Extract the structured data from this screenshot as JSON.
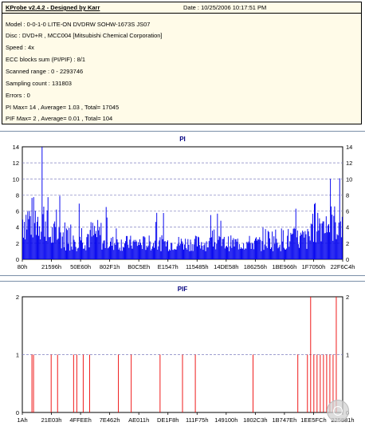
{
  "info": {
    "app_title": "KProbe v2.4.2 - Designed by Karr",
    "date": "Date : 10/25/2006 10:17:51 PM",
    "lines": [
      "Model : 0-0-1-0 LITE-ON DVDRW SOHW-1673S JS07",
      "Disc : DVD+R , MCC004 [Mitsubishi Chemical Corporation]",
      "Speed : 4x",
      "ECC blocks sum (PI/PIF) : 8/1",
      "Scanned range : 0 - 2293746",
      "Sampling count : 131803",
      "Errors : 0",
      "PI Max= 14 , Average= 1.03 , Total= 17045",
      "PIF Max= 2 , Average= 0.01 , Total= 104"
    ]
  },
  "colors": {
    "pi_bar": "#0000ee",
    "pif_bar": "#ee0000",
    "title": "#000080",
    "panel_border": "#7a8fa8"
  },
  "chart_data": [
    {
      "type": "bar",
      "title": "PI",
      "ylim": [
        0,
        14
      ],
      "yticks": [
        0,
        2,
        4,
        6,
        8,
        10,
        12,
        14
      ],
      "xticks": [
        "80h",
        "21596h",
        "50E60h",
        "802F1h",
        "B0C5Eh",
        "E1547h",
        "115485h",
        "14DE58h",
        "186256h",
        "1BE966h",
        "1F7050h",
        "22F6C4h"
      ],
      "grid": true,
      "series": [
        {
          "values_summary": "dense blue bars; edge regions 3-10, middle mostly 1-3",
          "max": 14,
          "average": 1.03,
          "total": 17045
        }
      ],
      "peaks": [
        {
          "x_fraction": 0.06,
          "y": 14
        },
        {
          "x_fraction": 0.96,
          "y": 10
        }
      ]
    },
    {
      "type": "bar",
      "title": "PIF",
      "ylim": [
        0,
        2
      ],
      "yticks": [
        0,
        1,
        2
      ],
      "xticks": [
        "1Ah",
        "21E03h",
        "4FFEEh",
        "7E462h",
        "AE011h",
        "DE1F8h",
        "111F75h",
        "149100h",
        "1802C3h",
        "1B747Eh",
        "1EE5FCh",
        "225881h"
      ],
      "grid": true,
      "series": [
        {
          "max": 2,
          "average": 0.01,
          "total": 104
        }
      ]
    }
  ]
}
